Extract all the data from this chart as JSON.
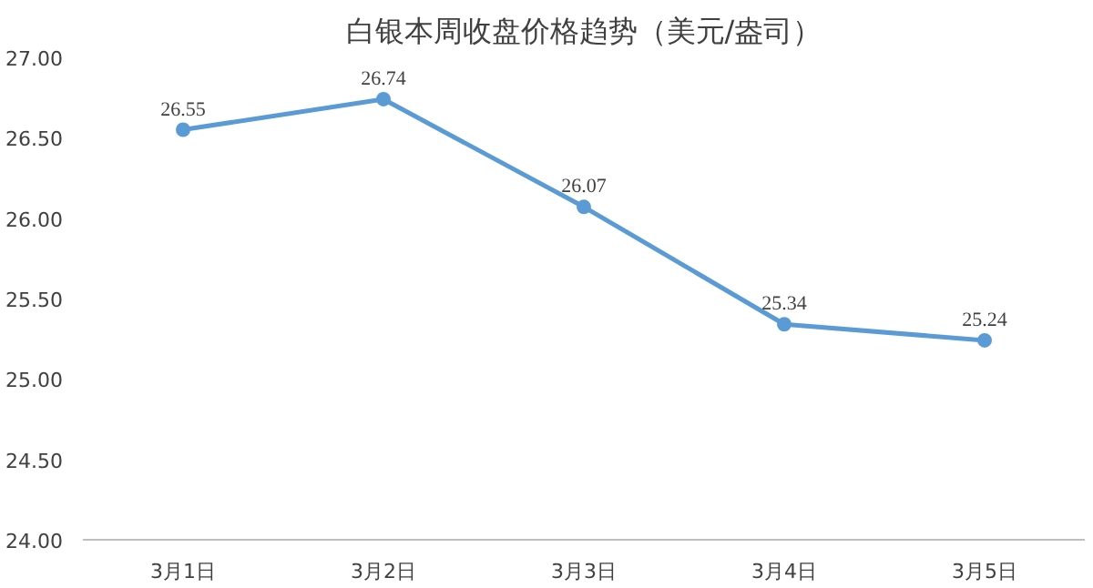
{
  "chart_data": {
    "type": "line",
    "title": "白银本周收盘价格趋势（美元/盎司）",
    "categories": [
      "3月1日",
      "3月2日",
      "3月3日",
      "3月4日",
      "3月5日"
    ],
    "series": [
      {
        "color": "#5b9bd5",
        "values": [
          26.55,
          26.74,
          26.07,
          25.34,
          25.24
        ]
      }
    ],
    "ylim": [
      24,
      27
    ],
    "yticks": [
      {
        "value": 24,
        "label": "24.00"
      },
      {
        "value": 24.5,
        "label": "24.50"
      },
      {
        "value": 25,
        "label": "25.00"
      },
      {
        "value": 25.5,
        "label": "25.50"
      },
      {
        "value": 26,
        "label": "26.00"
      },
      {
        "value": 26.5,
        "label": "26.50"
      },
      {
        "value": 27,
        "label": "27.00"
      }
    ],
    "marker": "circle",
    "data_labels": true,
    "grid": false
  }
}
